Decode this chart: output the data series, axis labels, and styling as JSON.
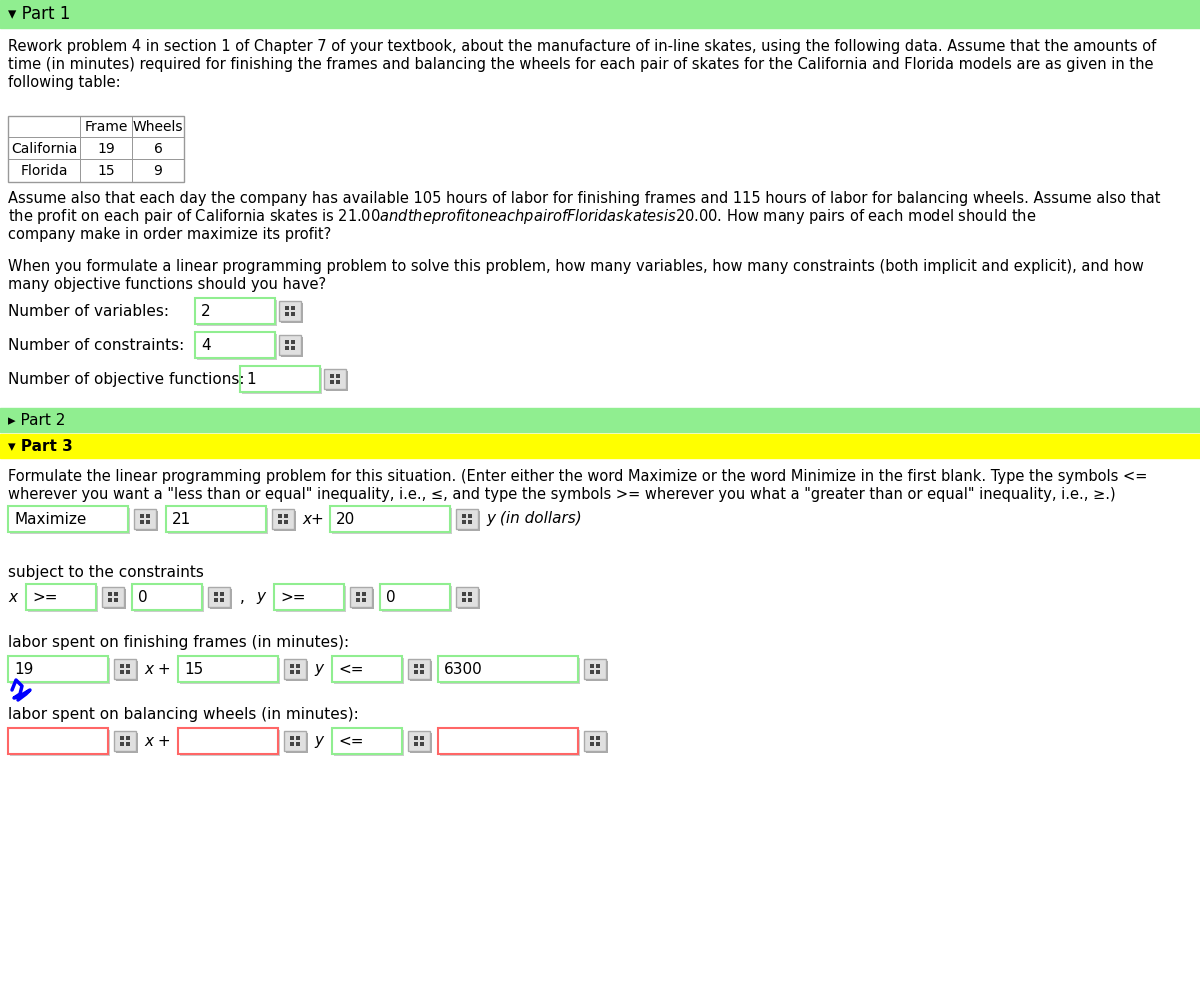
{
  "bg_color": "#ffffff",
  "part1_header_color": "#90EE90",
  "part2_header_color": "#90EE90",
  "part3_header_color": "#FFFF00",
  "body_text_color": "#000000",
  "part1_header": "▾ Part 1",
  "part2_header": "▸ Part 2",
  "part3_header": "▾ Part 3",
  "paragraph1_l1": "Rework problem 4 in section 1 of Chapter 7 of your textbook, about the manufacture of in-line skates, using the following data. Assume that the amounts of",
  "paragraph1_l2": "time (in minutes) required for finishing the frames and balancing the wheels for each pair of skates for the California and Florida models are as given in the",
  "paragraph1_l3": "following table:",
  "table_col_headers": [
    "Frame",
    "Wheels"
  ],
  "table_row1": [
    "California",
    "19",
    "6"
  ],
  "table_row2": [
    "Florida",
    "15",
    "9"
  ],
  "paragraph2_l1": "Assume also that each day the company has available 105 hours of labor for finishing frames and 115 hours of labor for balancing wheels. Assume also that",
  "paragraph2_l2": "the profit on each pair of California skates is $21.00 and the profit on each pair of Florida skates is $20.00. How many pairs of each model should the",
  "paragraph2_l3": "company make in order maximize its profit?",
  "paragraph3_l1": "When you formulate a linear programming problem to solve this problem, how many variables, how many constraints (both implicit and explicit), and how",
  "paragraph3_l2": "many objective functions should you have?",
  "num_variables_label": "Number of variables:",
  "num_variables_value": "2",
  "num_constraints_label": "Number of constraints:",
  "num_constraints_value": "4",
  "num_obj_label": "Number of objective functions:",
  "num_obj_value": "1",
  "part3_para_l1": "Formulate the linear programming problem for this situation. (Enter either the word Maximize or the word Minimize in the first blank. Type the symbols <=",
  "part3_para_l2": "wherever you want a \"less than or equal\" inequality, i.e., ≤, and type the symbols >= wherever you what a \"greater than or equal\" inequality, i.e., ≥.)",
  "maximize_label": "Maximize",
  "coeff_x": "21",
  "coeff_y": "20",
  "subject_to": "subject to the constraints",
  "frames_label": "labor spent on finishing frames (in minutes):",
  "frames_coeff_x": "19",
  "frames_coeff_y": "15",
  "frames_ineq": "<=",
  "frames_rhs": "6300",
  "wheels_label": "labor spent on balancing wheels (in minutes):",
  "wheels_ineq": "<="
}
